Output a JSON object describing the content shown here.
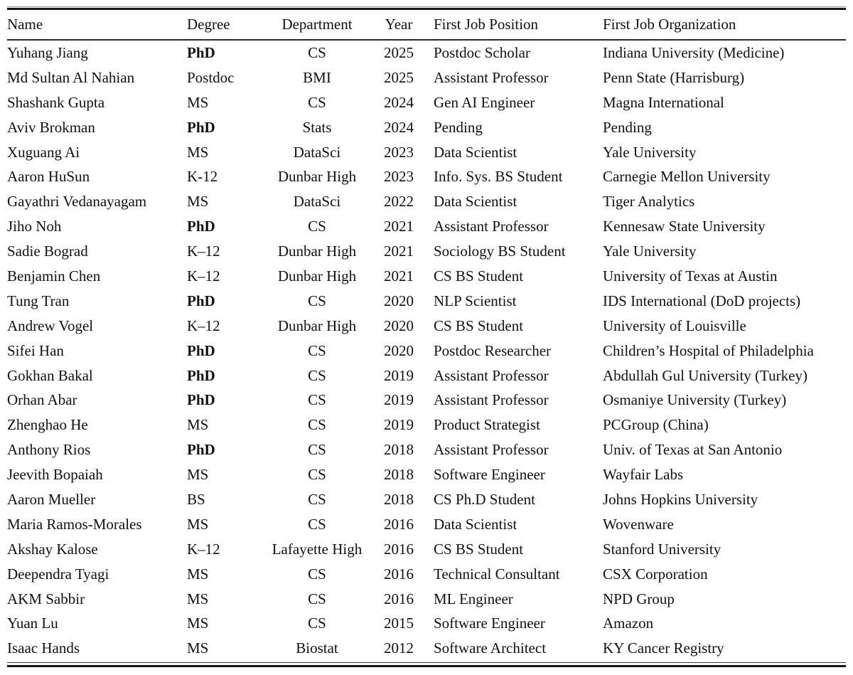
{
  "page": {
    "background": "#ffffff",
    "text_color": "#111111",
    "rule_color": "#161616"
  },
  "table": {
    "columns": [
      {
        "id": "name",
        "label": "Name",
        "align": "left"
      },
      {
        "id": "degree",
        "label": "Degree",
        "align": "left"
      },
      {
        "id": "department",
        "label": "Department",
        "align": "center"
      },
      {
        "id": "year",
        "label": "Year",
        "align": "center"
      },
      {
        "id": "position",
        "label": "First Job Position",
        "align": "left"
      },
      {
        "id": "organization",
        "label": "First Job Organization",
        "align": "left"
      }
    ],
    "rows": [
      {
        "name": "Yuhang Jiang",
        "degree": "PhD",
        "degree_bold": true,
        "department": "CS",
        "year": "2025",
        "position": "Postdoc Scholar",
        "organization": "Indiana University (Medicine)"
      },
      {
        "name": "Md Sultan Al Nahian",
        "degree": "Postdoc",
        "degree_bold": false,
        "department": "BMI",
        "year": "2025",
        "position": "Assistant Professor",
        "organization": "Penn State (Harrisburg)"
      },
      {
        "name": "Shashank Gupta",
        "degree": "MS",
        "degree_bold": false,
        "department": "CS",
        "year": "2024",
        "position": "Gen AI Engineer",
        "organization": "Magna International"
      },
      {
        "name": "Aviv Brokman",
        "degree": "PhD",
        "degree_bold": true,
        "department": "Stats",
        "year": "2024",
        "position": "Pending",
        "organization": "Pending"
      },
      {
        "name": "Xuguang Ai",
        "degree": "MS",
        "degree_bold": false,
        "department": "DataSci",
        "year": "2023",
        "position": "Data Scientist",
        "organization": "Yale University"
      },
      {
        "name": "Aaron HuSun",
        "degree": "K-12",
        "degree_bold": false,
        "department": "Dunbar High",
        "year": "2023",
        "position": "Info. Sys. BS Student",
        "organization": "Carnegie Mellon University"
      },
      {
        "name": "Gayathri Vedanayagam",
        "degree": "MS",
        "degree_bold": false,
        "department": "DataSci",
        "year": "2022",
        "position": "Data Scientist",
        "organization": "Tiger Analytics"
      },
      {
        "name": "Jiho Noh",
        "degree": "PhD",
        "degree_bold": true,
        "department": "CS",
        "year": "2021",
        "position": "Assistant Professor",
        "organization": "Kennesaw State University"
      },
      {
        "name": "Sadie Bograd",
        "degree": "K–12",
        "degree_bold": false,
        "department": "Dunbar High",
        "year": "2021",
        "position": "Sociology BS Student",
        "organization": "Yale University"
      },
      {
        "name": "Benjamin Chen",
        "degree": "K–12",
        "degree_bold": false,
        "department": "Dunbar High",
        "year": "2021",
        "position": "CS BS Student",
        "organization": "University of Texas at Austin"
      },
      {
        "name": "Tung Tran",
        "degree": "PhD",
        "degree_bold": true,
        "department": "CS",
        "year": "2020",
        "position": "NLP Scientist",
        "organization": "IDS International (DoD projects)"
      },
      {
        "name": "Andrew Vogel",
        "degree": "K–12",
        "degree_bold": false,
        "department": "Dunbar High",
        "year": "2020",
        "position": "CS BS Student",
        "organization": "University of Louisville"
      },
      {
        "name": "Sifei Han",
        "degree": "PhD",
        "degree_bold": true,
        "department": "CS",
        "year": "2020",
        "position": "Postdoc Researcher",
        "organization": "Children’s Hospital of Philadelphia"
      },
      {
        "name": "Gokhan Bakal",
        "degree": "PhD",
        "degree_bold": true,
        "department": "CS",
        "year": "2019",
        "position": "Assistant Professor",
        "organization": "Abdullah Gul University (Turkey)"
      },
      {
        "name": "Orhan Abar",
        "degree": "PhD",
        "degree_bold": true,
        "department": "CS",
        "year": "2019",
        "position": "Assistant Professor",
        "organization": "Osmaniye University (Turkey)"
      },
      {
        "name": "Zhenghao He",
        "degree": "MS",
        "degree_bold": false,
        "department": "CS",
        "year": "2019",
        "position": "Product Strategist",
        "organization": "PCGroup (China)"
      },
      {
        "name": "Anthony Rios",
        "degree": "PhD",
        "degree_bold": true,
        "department": "CS",
        "year": "2018",
        "position": "Assistant Professor",
        "organization": "Univ. of Texas at San Antonio"
      },
      {
        "name": "Jeevith Bopaiah",
        "degree": "MS",
        "degree_bold": false,
        "department": "CS",
        "year": "2018",
        "position": "Software Engineer",
        "organization": "Wayfair Labs"
      },
      {
        "name": "Aaron Mueller",
        "degree": "BS",
        "degree_bold": false,
        "department": "CS",
        "year": "2018",
        "position": "CS Ph.D Student",
        "organization": "Johns Hopkins University"
      },
      {
        "name": "Maria Ramos-Morales",
        "degree": "MS",
        "degree_bold": false,
        "department": "CS",
        "year": "2016",
        "position": "Data Scientist",
        "organization": "Wovenware"
      },
      {
        "name": "Akshay Kalose",
        "degree": "K–12",
        "degree_bold": false,
        "department": "Lafayette High",
        "year": "2016",
        "position": "CS BS Student",
        "organization": "Stanford University"
      },
      {
        "name": "Deependra Tyagi",
        "degree": "MS",
        "degree_bold": false,
        "department": "CS",
        "year": "2016",
        "position": "Technical Consultant",
        "organization": "CSX Corporation"
      },
      {
        "name": "AKM Sabbir",
        "degree": "MS",
        "degree_bold": false,
        "department": "CS",
        "year": "2016",
        "position": "ML Engineer",
        "organization": "NPD Group"
      },
      {
        "name": "Yuan Lu",
        "degree": "MS",
        "degree_bold": false,
        "department": "CS",
        "year": "2015",
        "position": "Software Engineer",
        "organization": "Amazon"
      },
      {
        "name": "Isaac Hands",
        "degree": "MS",
        "degree_bold": false,
        "department": "Biostat",
        "year": "2012",
        "position": "Software Architect",
        "organization": "KY Cancer Registry"
      }
    ]
  }
}
